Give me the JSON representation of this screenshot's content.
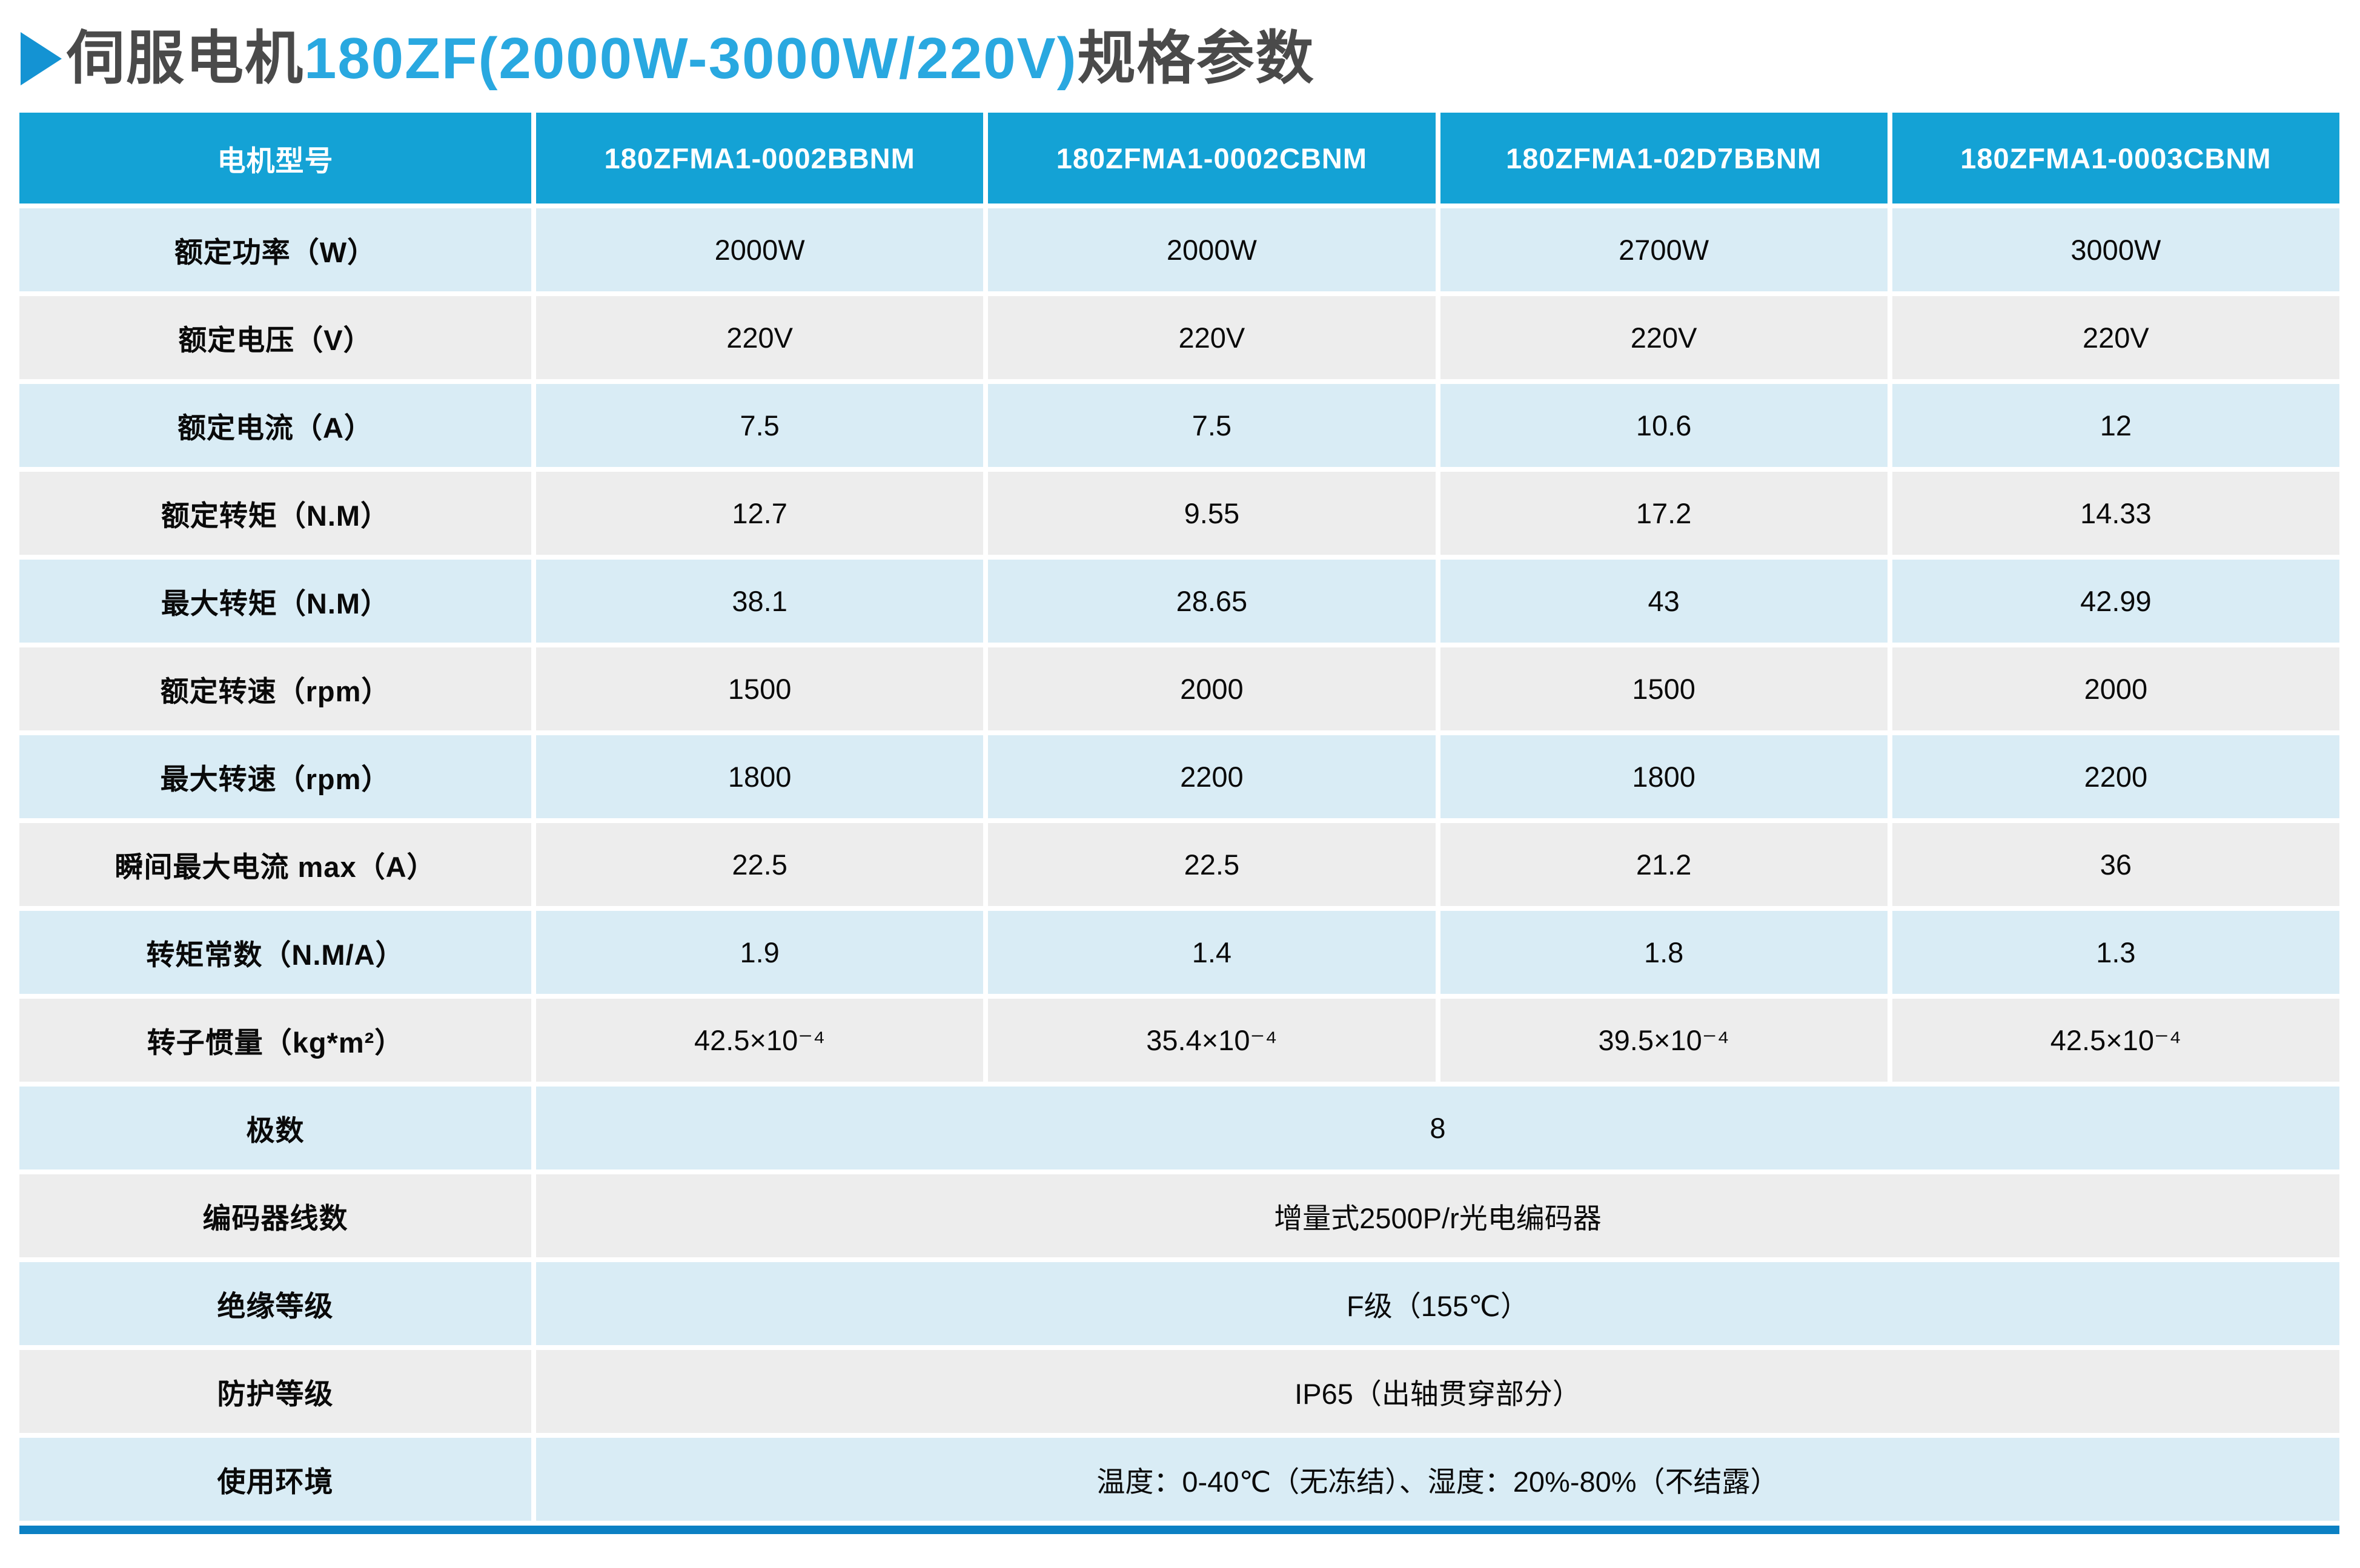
{
  "title": {
    "prefix": "伺服电机",
    "model": "180ZF(2000W-3000W/220V)",
    "suffix": "规格参数"
  },
  "colors": {
    "header_bg": "#14a2d5",
    "row_blue": "#d9ecf5",
    "row_gray": "#ededed",
    "accent_bar": "#0b80c3",
    "accent_arrow": "#1493d3",
    "title_dark": "#4a4a4a",
    "title_accent": "#29a8e0"
  },
  "table": {
    "header": [
      "电机型号",
      "180ZFMA1-0002BBNM",
      "180ZFMA1-0002CBNM",
      "180ZFMA1-02D7BBNM",
      "180ZFMA1-0003CBNM"
    ],
    "rows": [
      {
        "label": "额定功率（W）",
        "values": [
          "2000W",
          "2000W",
          "2700W",
          "3000W"
        ]
      },
      {
        "label": "额定电压（V）",
        "values": [
          "220V",
          "220V",
          "220V",
          "220V"
        ]
      },
      {
        "label": "额定电流（A）",
        "values": [
          "7.5",
          "7.5",
          "10.6",
          "12"
        ]
      },
      {
        "label": "额定转矩（N.M）",
        "values": [
          "12.7",
          "9.55",
          "17.2",
          "14.33"
        ]
      },
      {
        "label": "最大转矩（N.M）",
        "values": [
          "38.1",
          "28.65",
          "43",
          "42.99"
        ]
      },
      {
        "label": "额定转速（rpm）",
        "values": [
          "1500",
          "2000",
          "1500",
          "2000"
        ]
      },
      {
        "label": "最大转速（rpm）",
        "values": [
          "1800",
          "2200",
          "1800",
          "2200"
        ]
      },
      {
        "label": "瞬间最大电流 max（A）",
        "values": [
          "22.5",
          "22.5",
          "21.2",
          "36"
        ]
      },
      {
        "label": "转矩常数（N.M/A）",
        "values": [
          "1.9",
          "1.4",
          "1.8",
          "1.3"
        ]
      },
      {
        "label": "转子惯量（kg*m²）",
        "values": [
          "42.5×10⁻⁴",
          "35.4×10⁻⁴",
          "39.5×10⁻⁴",
          "42.5×10⁻⁴"
        ]
      },
      {
        "label": "极数",
        "merged": "8"
      },
      {
        "label": "编码器线数",
        "merged": "增量式2500P/r光电编码器"
      },
      {
        "label": "绝缘等级",
        "merged": "F级（155℃）"
      },
      {
        "label": "防护等级",
        "merged": "IP65（出轴贯穿部分）"
      },
      {
        "label": "使用环境",
        "merged": "温度：0-40℃（无冻结）、湿度：20%-80%（不结露）"
      }
    ]
  }
}
